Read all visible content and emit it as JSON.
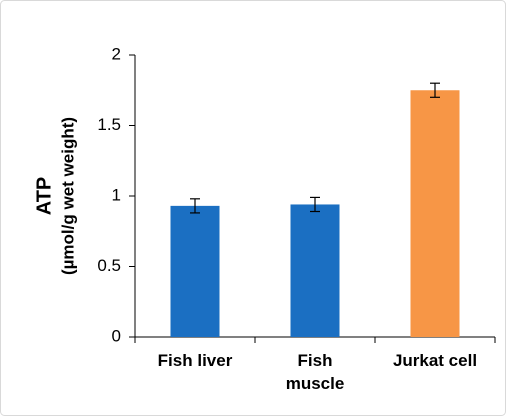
{
  "chart_data": {
    "type": "bar",
    "y_label": [
      "ATP",
      "(µmol/g wet weight)"
    ],
    "categories": [
      "Fish liver",
      "Fish muscle",
      "Jurkat cell"
    ],
    "values": [
      0.93,
      0.94,
      1.75
    ],
    "errors": [
      0.05,
      0.05,
      0.05
    ],
    "colors": [
      "#1b6fc2",
      "#1b6fc2",
      "#f79646"
    ],
    "ylim": [
      0,
      2
    ],
    "yticks": [
      0,
      0.5,
      1,
      1.5,
      2
    ],
    "grid": false
  }
}
